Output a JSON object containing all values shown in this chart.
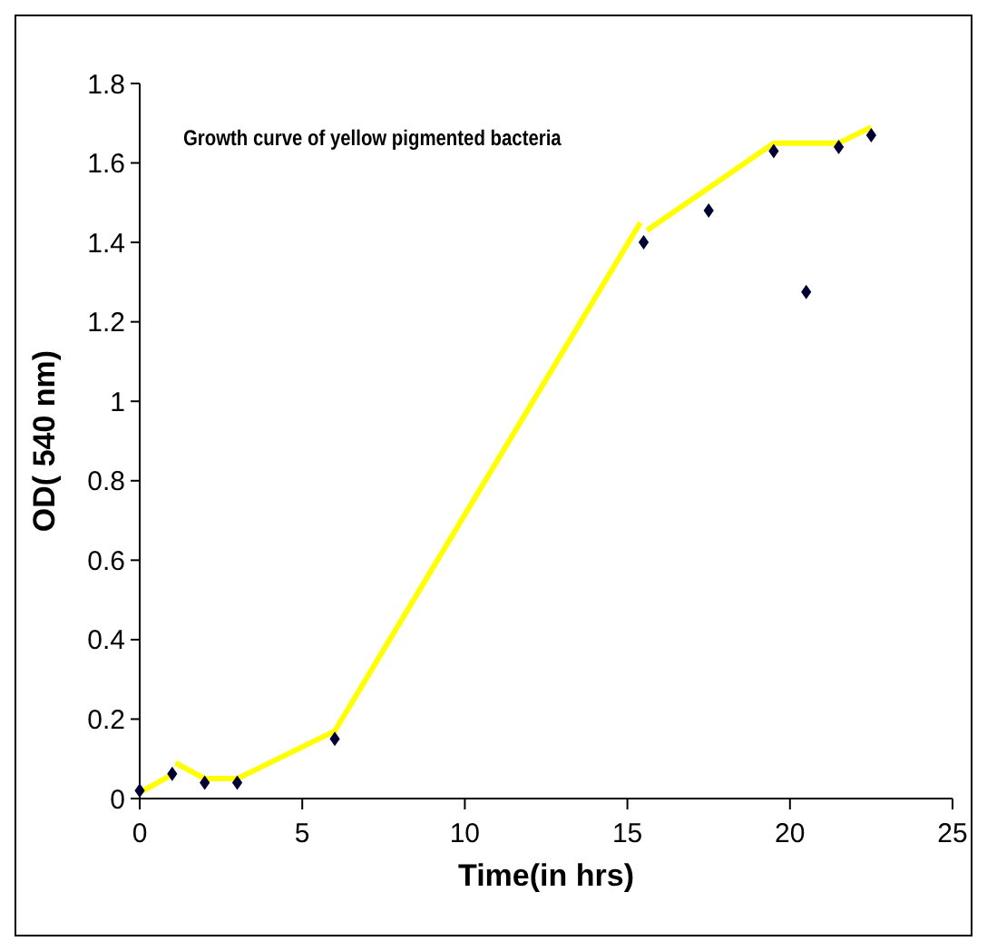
{
  "chart_data": {
    "type": "scatter",
    "title": "Growth curve of yellow pigmented bacteria",
    "xlabel": "Time(in hrs)",
    "ylabel": "OD( 540 nm)",
    "xlim": [
      0,
      25
    ],
    "xticks": [
      0,
      5,
      10,
      15,
      20,
      25
    ],
    "ylim": [
      0,
      1.8
    ],
    "yticks": [
      0,
      0.2,
      0.4,
      0.6,
      0.8,
      1,
      1.2,
      1.4,
      1.6,
      1.8
    ],
    "grid": false,
    "marker": "diamond",
    "series": [
      {
        "type": "line",
        "color": "#ffff00",
        "marker": "none",
        "x": [
          0,
          1
        ],
        "values": [
          0.015,
          0.06
        ]
      },
      {
        "type": "line",
        "color": "#ffff00",
        "marker": "none",
        "x": [
          1.1,
          2,
          3,
          6,
          15.4
        ],
        "values": [
          0.09,
          0.05,
          0.05,
          0.17,
          1.45
        ]
      },
      {
        "type": "line",
        "color": "#ffff00",
        "marker": "none",
        "x": [
          15.6,
          19.5,
          21.5,
          22.5
        ],
        "values": [
          1.43,
          1.65,
          1.65,
          1.69
        ]
      },
      {
        "color": "#000033",
        "x": [
          0,
          1,
          2,
          3,
          6,
          15.5,
          17.5,
          19.5,
          20.5,
          21.5,
          22.5
        ],
        "values": [
          0.02,
          0.062,
          0.04,
          0.04,
          0.15,
          1.4,
          1.48,
          1.63,
          1.275,
          1.64,
          1.67
        ]
      }
    ]
  }
}
